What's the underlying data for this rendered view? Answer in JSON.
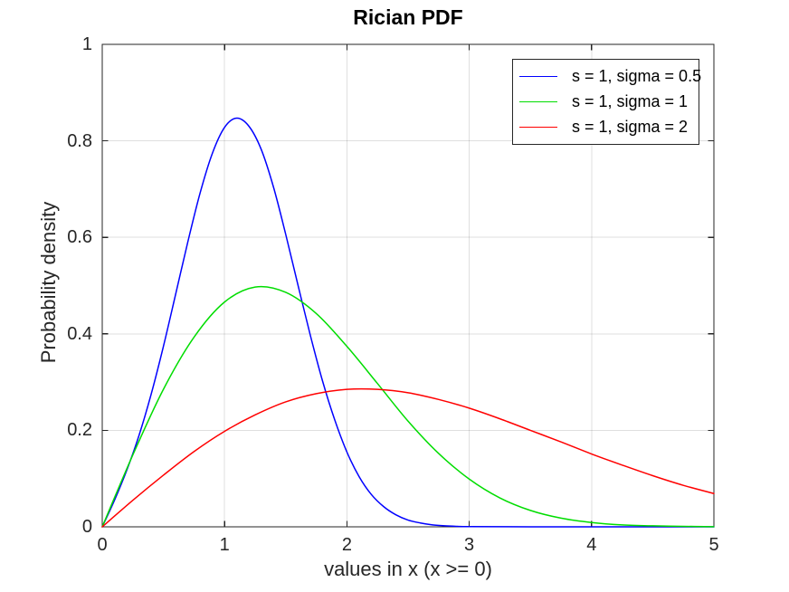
{
  "chart_data": {
    "type": "line",
    "title": "Rician PDF",
    "xlabel": "values in x (x >= 0)",
    "ylabel": "Probability density",
    "xlim": [
      0,
      5
    ],
    "ylim": [
      0,
      1
    ],
    "xticks": [
      0,
      1,
      2,
      3,
      4,
      5
    ],
    "xtick_labels": [
      "0",
      "1",
      "2",
      "3",
      "4",
      "5"
    ],
    "yticks": [
      0,
      0.2,
      0.4,
      0.6,
      0.8,
      1
    ],
    "ytick_labels": [
      "0",
      "0.2",
      "0.4",
      "0.6",
      "0.8",
      "1"
    ],
    "grid": true,
    "legend_position": "top-right",
    "background_color": "#ffffff",
    "axis_color": "#262626",
    "grid_color": "rgba(38,38,38,0.15)",
    "series": [
      {
        "name": "s = 1, sigma = 0.5",
        "color": "#0000ff",
        "x": [
          0,
          0.1,
          0.2,
          0.3,
          0.4,
          0.5,
          0.6,
          0.7,
          0.8,
          0.9,
          1.0,
          1.1,
          1.2,
          1.3,
          1.4,
          1.5,
          1.6,
          1.7,
          1.8,
          1.9,
          2.0,
          2.1,
          2.2,
          2.3,
          2.4,
          2.5,
          2.6,
          2.7,
          2.8,
          2.9,
          3.0,
          3.5,
          4.0,
          4.5,
          5.0
        ],
        "y": [
          0,
          0.055,
          0.117,
          0.189,
          0.275,
          0.374,
          0.482,
          0.591,
          0.692,
          0.774,
          0.828,
          0.847,
          0.83,
          0.782,
          0.704,
          0.606,
          0.501,
          0.398,
          0.303,
          0.222,
          0.155,
          0.104,
          0.067,
          0.042,
          0.025,
          0.014,
          0.008,
          0.004,
          0.002,
          0.001,
          0.0005,
          0,
          0,
          0,
          0
        ]
      },
      {
        "name": "s = 1, sigma = 1",
        "color": "#00dd00",
        "x": [
          0,
          0.25,
          0.5,
          0.75,
          1.0,
          1.25,
          1.5,
          1.75,
          2.0,
          2.25,
          2.5,
          2.75,
          3.0,
          3.25,
          3.5,
          3.75,
          4.0,
          4.25,
          4.5,
          4.75,
          5.0
        ],
        "y": [
          0,
          0.149,
          0.285,
          0.393,
          0.466,
          0.497,
          0.486,
          0.442,
          0.374,
          0.297,
          0.219,
          0.152,
          0.099,
          0.06,
          0.034,
          0.018,
          0.009,
          0.004,
          0.002,
          0.001,
          0.0003
        ]
      },
      {
        "name": "s = 1, sigma = 2",
        "color": "#ff0000",
        "x": [
          0,
          0.25,
          0.5,
          0.75,
          1.0,
          1.25,
          1.5,
          1.75,
          2.0,
          2.25,
          2.5,
          2.75,
          3.0,
          3.25,
          3.5,
          3.75,
          4.0,
          4.25,
          4.5,
          4.75,
          5.0
        ],
        "y": [
          0,
          0.055,
          0.107,
          0.156,
          0.198,
          0.232,
          0.259,
          0.276,
          0.285,
          0.285,
          0.278,
          0.264,
          0.246,
          0.224,
          0.2,
          0.176,
          0.151,
          0.128,
          0.106,
          0.086,
          0.069
        ]
      }
    ]
  }
}
